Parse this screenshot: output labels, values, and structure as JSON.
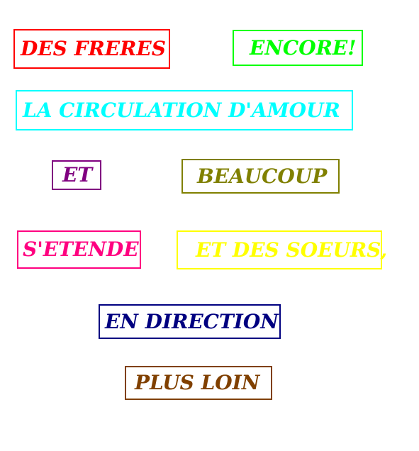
{
  "boxes": [
    {
      "id": "des-freres",
      "text": "DES  FRERES",
      "color": "#ff0000"
    },
    {
      "id": "encore",
      "text": "ENCORE!",
      "color": "#00ff00"
    },
    {
      "id": "la-circulation",
      "text": "LA CIRCULATION D'AMOUR",
      "color": "#00ffff"
    },
    {
      "id": "et",
      "text": "ET",
      "color": "#800080"
    },
    {
      "id": "beaucoup",
      "text": "BEAUCOUP",
      "color": "#808000"
    },
    {
      "id": "s-etende",
      "text": "S'ETENDE",
      "color": "#ff0080"
    },
    {
      "id": "et-des-soeurs",
      "text": "ET DES SOEURS,",
      "color": "#ffff00"
    },
    {
      "id": "en-direction",
      "text": "EN DIRECTION",
      "color": "#000080"
    },
    {
      "id": "plus-loin",
      "text": "PLUS LOIN",
      "color": "#804000"
    }
  ]
}
